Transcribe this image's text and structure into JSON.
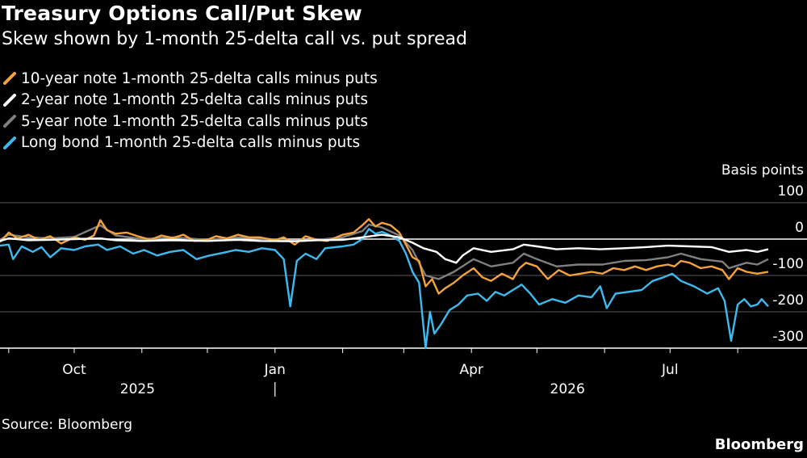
{
  "header": {
    "title": "Treasury Options Call/Put Skew",
    "subtitle": "Skew shown by 1-month 25-delta call vs. put spread"
  },
  "footer": {
    "source": "Source: Bloomberg",
    "brand": "Bloomberg"
  },
  "chart_data": {
    "type": "line",
    "ylabel": "Basis points",
    "ylim": [
      -300,
      100
    ],
    "y_ticks": [
      100,
      0,
      -100,
      -200,
      -300
    ],
    "y_tick_labels": [
      "100",
      "0",
      "-100",
      "-200",
      "-300"
    ],
    "x_range": [
      "2025-08-28",
      "2026-08-15"
    ],
    "x_ticks": [
      {
        "date": "2025-10-01",
        "label": "Oct"
      },
      {
        "date": "2026-01-01",
        "label": "Jan"
      },
      {
        "date": "2026-04-01",
        "label": "Apr"
      },
      {
        "date": "2026-07-01",
        "label": "Jul"
      }
    ],
    "year_labels": [
      {
        "date": "2025-10-30",
        "label": "2025"
      },
      {
        "date": "2026-05-15",
        "label": "2026"
      }
    ],
    "year_divider": "2026-01-01",
    "grid": "horizontal",
    "legend_position": "top-left",
    "series": [
      {
        "name": "10-year note 1-month 25-delta calls minus puts",
        "color": "#f5a23b",
        "points": [
          [
            "2025-08-28",
            -8
          ],
          [
            "2025-09-01",
            18
          ],
          [
            "2025-09-05",
            2
          ],
          [
            "2025-09-10",
            12
          ],
          [
            "2025-09-15",
            -2
          ],
          [
            "2025-09-20",
            8
          ],
          [
            "2025-09-25",
            -12
          ],
          [
            "2025-10-01",
            5
          ],
          [
            "2025-10-06",
            -2
          ],
          [
            "2025-10-10",
            10
          ],
          [
            "2025-10-13",
            52
          ],
          [
            "2025-10-16",
            25
          ],
          [
            "2025-10-20",
            15
          ],
          [
            "2025-10-25",
            18
          ],
          [
            "2025-10-30",
            8
          ],
          [
            "2025-11-05",
            -2
          ],
          [
            "2025-11-10",
            10
          ],
          [
            "2025-11-15",
            3
          ],
          [
            "2025-11-20",
            12
          ],
          [
            "2025-11-25",
            -5
          ],
          [
            "2025-12-01",
            -2
          ],
          [
            "2025-12-05",
            8
          ],
          [
            "2025-12-10",
            2
          ],
          [
            "2025-12-15",
            12
          ],
          [
            "2025-12-20",
            5
          ],
          [
            "2025-12-25",
            5
          ],
          [
            "2026-01-01",
            -3
          ],
          [
            "2026-01-05",
            5
          ],
          [
            "2026-01-10",
            -15
          ],
          [
            "2026-01-15",
            8
          ],
          [
            "2026-01-20",
            -2
          ],
          [
            "2026-01-25",
            -5
          ],
          [
            "2026-02-01",
            12
          ],
          [
            "2026-02-06",
            18
          ],
          [
            "2026-02-10",
            38
          ],
          [
            "2026-02-13",
            55
          ],
          [
            "2026-02-16",
            35
          ],
          [
            "2026-02-19",
            45
          ],
          [
            "2026-02-23",
            38
          ],
          [
            "2026-02-27",
            18
          ],
          [
            "2026-03-02",
            -15
          ],
          [
            "2026-03-05",
            -50
          ],
          [
            "2026-03-08",
            -60
          ],
          [
            "2026-03-11",
            -130
          ],
          [
            "2026-03-14",
            -110
          ],
          [
            "2026-03-17",
            -150
          ],
          [
            "2026-03-20",
            -135
          ],
          [
            "2026-03-24",
            -120
          ],
          [
            "2026-03-28",
            -100
          ],
          [
            "2026-04-02",
            -80
          ],
          [
            "2026-04-06",
            -105
          ],
          [
            "2026-04-10",
            -115
          ],
          [
            "2026-04-15",
            -95
          ],
          [
            "2026-04-20",
            -110
          ],
          [
            "2026-04-23",
            -80
          ],
          [
            "2026-04-26",
            -65
          ],
          [
            "2026-05-01",
            -75
          ],
          [
            "2026-05-06",
            -110
          ],
          [
            "2026-05-11",
            -85
          ],
          [
            "2026-05-16",
            -100
          ],
          [
            "2026-05-21",
            -95
          ],
          [
            "2026-05-26",
            -90
          ],
          [
            "2026-05-31",
            -95
          ],
          [
            "2026-06-05",
            -80
          ],
          [
            "2026-06-10",
            -85
          ],
          [
            "2026-06-15",
            -75
          ],
          [
            "2026-06-20",
            -85
          ],
          [
            "2026-06-25",
            -75
          ],
          [
            "2026-06-30",
            -70
          ],
          [
            "2026-07-03",
            -75
          ],
          [
            "2026-07-06",
            -60
          ],
          [
            "2026-07-10",
            -65
          ],
          [
            "2026-07-15",
            -80
          ],
          [
            "2026-07-20",
            -75
          ],
          [
            "2026-07-25",
            -85
          ],
          [
            "2026-07-28",
            -110
          ],
          [
            "2026-08-01",
            -80
          ],
          [
            "2026-08-05",
            -90
          ],
          [
            "2026-08-10",
            -95
          ],
          [
            "2026-08-15",
            -90
          ]
        ]
      },
      {
        "name": "2-year note 1-month 25-delta calls minus puts",
        "color": "#ffffff",
        "points": [
          [
            "2025-08-28",
            -5
          ],
          [
            "2025-09-01",
            2
          ],
          [
            "2025-09-10",
            -3
          ],
          [
            "2025-09-20",
            -2
          ],
          [
            "2025-10-01",
            0
          ],
          [
            "2025-10-13",
            2
          ],
          [
            "2025-10-20",
            -3
          ],
          [
            "2025-11-01",
            -5
          ],
          [
            "2025-11-15",
            -3
          ],
          [
            "2025-12-01",
            -5
          ],
          [
            "2025-12-15",
            -2
          ],
          [
            "2025-12-25",
            -5
          ],
          [
            "2026-01-10",
            -6
          ],
          [
            "2026-01-20",
            -3
          ],
          [
            "2026-02-01",
            -2
          ],
          [
            "2026-02-10",
            5
          ],
          [
            "2026-02-19",
            12
          ],
          [
            "2026-02-27",
            5
          ],
          [
            "2026-03-05",
            -10
          ],
          [
            "2026-03-10",
            -25
          ],
          [
            "2026-03-16",
            -35
          ],
          [
            "2026-03-20",
            -55
          ],
          [
            "2026-03-25",
            -65
          ],
          [
            "2026-03-28",
            -45
          ],
          [
            "2026-04-02",
            -25
          ],
          [
            "2026-04-10",
            -35
          ],
          [
            "2026-04-20",
            -28
          ],
          [
            "2026-04-25",
            -15
          ],
          [
            "2026-05-01",
            -20
          ],
          [
            "2026-05-10",
            -28
          ],
          [
            "2026-05-20",
            -25
          ],
          [
            "2026-05-30",
            -28
          ],
          [
            "2026-06-10",
            -25
          ],
          [
            "2026-06-20",
            -22
          ],
          [
            "2026-06-30",
            -18
          ],
          [
            "2026-07-10",
            -20
          ],
          [
            "2026-07-20",
            -22
          ],
          [
            "2026-07-28",
            -35
          ],
          [
            "2026-08-05",
            -30
          ],
          [
            "2026-08-10",
            -35
          ],
          [
            "2026-08-15",
            -28
          ]
        ]
      },
      {
        "name": "5-year note 1-month 25-delta calls minus puts",
        "color": "#7f7f7f",
        "points": [
          [
            "2025-08-28",
            -2
          ],
          [
            "2025-09-01",
            12
          ],
          [
            "2025-09-10",
            5
          ],
          [
            "2025-09-20",
            2
          ],
          [
            "2025-10-01",
            6
          ],
          [
            "2025-10-13",
            38
          ],
          [
            "2025-10-20",
            10
          ],
          [
            "2025-11-01",
            0
          ],
          [
            "2025-11-15",
            5
          ],
          [
            "2025-12-01",
            -2
          ],
          [
            "2025-12-15",
            5
          ],
          [
            "2025-12-25",
            2
          ],
          [
            "2026-01-10",
            -5
          ],
          [
            "2026-01-20",
            -2
          ],
          [
            "2026-02-01",
            5
          ],
          [
            "2026-02-10",
            22
          ],
          [
            "2026-02-13",
            40
          ],
          [
            "2026-02-19",
            32
          ],
          [
            "2026-02-27",
            10
          ],
          [
            "2026-03-05",
            -30
          ],
          [
            "2026-03-11",
            -100
          ],
          [
            "2026-03-17",
            -110
          ],
          [
            "2026-03-24",
            -90
          ],
          [
            "2026-04-02",
            -55
          ],
          [
            "2026-04-10",
            -75
          ],
          [
            "2026-04-20",
            -65
          ],
          [
            "2026-04-25",
            -40
          ],
          [
            "2026-05-01",
            -55
          ],
          [
            "2026-05-10",
            -75
          ],
          [
            "2026-05-20",
            -70
          ],
          [
            "2026-05-31",
            -70
          ],
          [
            "2026-06-10",
            -60
          ],
          [
            "2026-06-20",
            -58
          ],
          [
            "2026-06-30",
            -50
          ],
          [
            "2026-07-06",
            -40
          ],
          [
            "2026-07-15",
            -55
          ],
          [
            "2026-07-25",
            -62
          ],
          [
            "2026-07-28",
            -80
          ],
          [
            "2026-08-05",
            -65
          ],
          [
            "2026-08-10",
            -70
          ],
          [
            "2026-08-15",
            -55
          ]
        ]
      },
      {
        "name": "Long bond 1-month 25-delta calls minus puts",
        "color": "#3dbbf0",
        "points": [
          [
            "2025-08-28",
            -18
          ],
          [
            "2025-09-01",
            -15
          ],
          [
            "2025-09-03",
            -55
          ],
          [
            "2025-09-07",
            -20
          ],
          [
            "2025-09-12",
            -35
          ],
          [
            "2025-09-16",
            -22
          ],
          [
            "2025-09-20",
            -50
          ],
          [
            "2025-09-25",
            -25
          ],
          [
            "2025-10-01",
            -30
          ],
          [
            "2025-10-06",
            -20
          ],
          [
            "2025-10-12",
            -15
          ],
          [
            "2025-10-16",
            -30
          ],
          [
            "2025-10-22",
            -20
          ],
          [
            "2025-10-28",
            -40
          ],
          [
            "2025-11-02",
            -30
          ],
          [
            "2025-11-08",
            -45
          ],
          [
            "2025-11-14",
            -35
          ],
          [
            "2025-11-20",
            -30
          ],
          [
            "2025-11-26",
            -55
          ],
          [
            "2025-12-02",
            -45
          ],
          [
            "2025-12-08",
            -38
          ],
          [
            "2025-12-14",
            -30
          ],
          [
            "2025-12-20",
            -35
          ],
          [
            "2025-12-26",
            -25
          ],
          [
            "2026-01-01",
            -30
          ],
          [
            "2026-01-05",
            -55
          ],
          [
            "2026-01-08",
            -185
          ],
          [
            "2026-01-11",
            -60
          ],
          [
            "2026-01-15",
            -40
          ],
          [
            "2026-01-20",
            -55
          ],
          [
            "2026-01-24",
            -25
          ],
          [
            "2026-02-01",
            -20
          ],
          [
            "2026-02-06",
            -15
          ],
          [
            "2026-02-10",
            0
          ],
          [
            "2026-02-13",
            28
          ],
          [
            "2026-02-16",
            15
          ],
          [
            "2026-02-19",
            20
          ],
          [
            "2026-02-23",
            10
          ],
          [
            "2026-02-27",
            -5
          ],
          [
            "2026-03-02",
            -40
          ],
          [
            "2026-03-05",
            -90
          ],
          [
            "2026-03-08",
            -120
          ],
          [
            "2026-03-11",
            -300
          ],
          [
            "2026-03-13",
            -200
          ],
          [
            "2026-03-15",
            -260
          ],
          [
            "2026-03-18",
            -235
          ],
          [
            "2026-03-22",
            -195
          ],
          [
            "2026-03-26",
            -180
          ],
          [
            "2026-03-30",
            -155
          ],
          [
            "2026-04-04",
            -150
          ],
          [
            "2026-04-08",
            -170
          ],
          [
            "2026-04-12",
            -145
          ],
          [
            "2026-04-16",
            -155
          ],
          [
            "2026-04-20",
            -140
          ],
          [
            "2026-04-24",
            -125
          ],
          [
            "2026-04-28",
            -150
          ],
          [
            "2026-05-02",
            -180
          ],
          [
            "2026-05-08",
            -165
          ],
          [
            "2026-05-14",
            -175
          ],
          [
            "2026-05-20",
            -155
          ],
          [
            "2026-05-26",
            -160
          ],
          [
            "2026-05-30",
            -130
          ],
          [
            "2026-06-02",
            -190
          ],
          [
            "2026-06-06",
            -150
          ],
          [
            "2026-06-12",
            -145
          ],
          [
            "2026-06-18",
            -140
          ],
          [
            "2026-06-23",
            -115
          ],
          [
            "2026-06-28",
            -105
          ],
          [
            "2026-07-02",
            -95
          ],
          [
            "2026-07-06",
            -115
          ],
          [
            "2026-07-12",
            -130
          ],
          [
            "2026-07-18",
            -150
          ],
          [
            "2026-07-23",
            -135
          ],
          [
            "2026-07-26",
            -170
          ],
          [
            "2026-07-29",
            -280
          ],
          [
            "2026-08-01",
            -180
          ],
          [
            "2026-08-04",
            -165
          ],
          [
            "2026-08-07",
            -185
          ],
          [
            "2026-08-10",
            -180
          ],
          [
            "2026-08-12",
            -165
          ],
          [
            "2026-08-15",
            -185
          ]
        ]
      }
    ]
  }
}
